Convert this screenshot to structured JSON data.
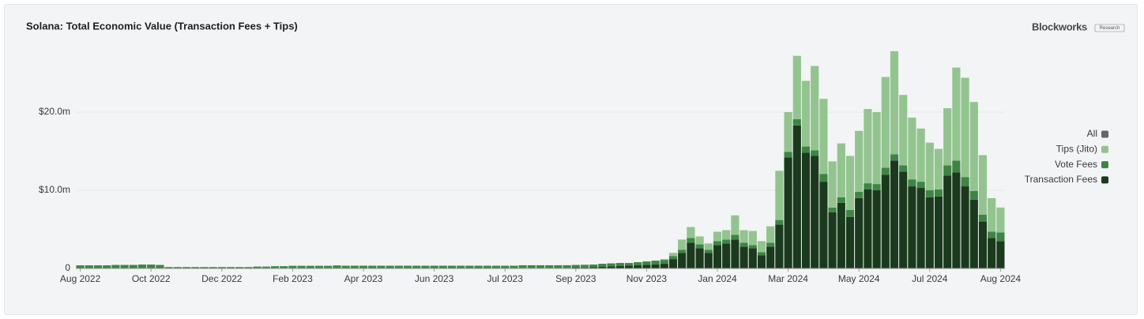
{
  "branding": {
    "name": "Blockworks",
    "tag": "Research"
  },
  "chart_data": {
    "type": "stacked-bar",
    "title": "Solana: Total Economic Value (Transaction Fees + Tips)",
    "categories": [
      "Aug 2022",
      null,
      null,
      null,
      null,
      null,
      null,
      null,
      "Oct 2022",
      null,
      null,
      null,
      null,
      null,
      null,
      null,
      "Dec 2022",
      null,
      null,
      null,
      null,
      null,
      null,
      null,
      "Feb 2023",
      null,
      null,
      null,
      null,
      null,
      null,
      null,
      "Apr 2023",
      null,
      null,
      null,
      null,
      null,
      null,
      null,
      "Jun 2023",
      null,
      null,
      null,
      null,
      null,
      null,
      null,
      "Jul 2023",
      null,
      null,
      null,
      null,
      null,
      null,
      null,
      "Sep 2023",
      null,
      null,
      null,
      null,
      null,
      null,
      null,
      "Nov 2023",
      null,
      null,
      null,
      null,
      null,
      null,
      null,
      "Jan 2024",
      null,
      null,
      null,
      null,
      null,
      null,
      null,
      "Mar 2024",
      null,
      null,
      null,
      null,
      null,
      null,
      null,
      "May 2024",
      null,
      null,
      null,
      null,
      null,
      null,
      null,
      "Jul 2024",
      null,
      null,
      null,
      null,
      null,
      null,
      null,
      "Aug 2024"
    ],
    "series": [
      {
        "name": "Transaction Fees",
        "color": "#1b3a1d",
        "values": [
          0.05,
          0.05,
          0.05,
          0.05,
          0.05,
          0.05,
          0.05,
          0.05,
          0.05,
          0.05,
          0.03,
          0.03,
          0.03,
          0.03,
          0.03,
          0.03,
          0.03,
          0.03,
          0.03,
          0.03,
          0.04,
          0.04,
          0.04,
          0.04,
          0.04,
          0.04,
          0.04,
          0.04,
          0.04,
          0.04,
          0.05,
          0.05,
          0.05,
          0.05,
          0.05,
          0.05,
          0.05,
          0.05,
          0.05,
          0.05,
          0.05,
          0.05,
          0.05,
          0.05,
          0.05,
          0.05,
          0.05,
          0.05,
          0.05,
          0.05,
          0.06,
          0.06,
          0.06,
          0.06,
          0.06,
          0.06,
          0.1,
          0.12,
          0.15,
          0.2,
          0.25,
          0.3,
          0.35,
          0.4,
          0.45,
          0.5,
          0.6,
          1.2,
          2.0,
          3.3,
          2.6,
          2.0,
          3.0,
          3.2,
          3.7,
          2.8,
          2.6,
          1.7,
          2.8,
          5.6,
          14.2,
          18.3,
          14.8,
          14.4,
          11.1,
          7.2,
          8.4,
          6.6,
          9.0,
          10.1,
          10.0,
          12.0,
          13.8,
          12.4,
          10.5,
          10.3,
          9.1,
          9.2,
          11.9,
          12.3,
          10.5,
          8.8,
          6.0,
          3.9,
          3.5
        ]
      },
      {
        "name": "Vote Fees",
        "color": "#3e8544",
        "values": [
          0.35,
          0.35,
          0.35,
          0.35,
          0.4,
          0.4,
          0.4,
          0.45,
          0.45,
          0.4,
          0.15,
          0.15,
          0.15,
          0.15,
          0.15,
          0.15,
          0.15,
          0.15,
          0.15,
          0.15,
          0.2,
          0.2,
          0.25,
          0.25,
          0.3,
          0.3,
          0.3,
          0.3,
          0.3,
          0.35,
          0.3,
          0.3,
          0.3,
          0.3,
          0.3,
          0.3,
          0.3,
          0.3,
          0.3,
          0.3,
          0.3,
          0.3,
          0.3,
          0.3,
          0.3,
          0.3,
          0.3,
          0.3,
          0.3,
          0.3,
          0.35,
          0.35,
          0.35,
          0.35,
          0.35,
          0.35,
          0.35,
          0.35,
          0.35,
          0.4,
          0.4,
          0.4,
          0.35,
          0.4,
          0.45,
          0.5,
          0.5,
          0.4,
          0.4,
          0.6,
          0.5,
          0.4,
          0.5,
          0.5,
          0.6,
          0.5,
          0.4,
          0.4,
          0.5,
          0.6,
          0.7,
          0.8,
          0.8,
          0.7,
          1.0,
          0.6,
          0.7,
          0.9,
          0.8,
          0.8,
          0.8,
          0.9,
          0.8,
          0.8,
          0.9,
          0.8,
          0.9,
          0.9,
          1.3,
          1.5,
          1.2,
          1.1,
          0.9,
          0.8,
          1.1
        ]
      },
      {
        "name": "Tips (Jito)",
        "color": "#93c48f",
        "values": [
          0,
          0,
          0,
          0,
          0,
          0,
          0,
          0,
          0,
          0,
          0,
          0,
          0,
          0,
          0,
          0,
          0,
          0,
          0,
          0,
          0,
          0,
          0,
          0,
          0,
          0,
          0,
          0,
          0,
          0,
          0,
          0,
          0,
          0,
          0,
          0,
          0,
          0,
          0,
          0,
          0,
          0,
          0,
          0,
          0,
          0,
          0,
          0,
          0,
          0,
          0,
          0,
          0,
          0,
          0,
          0,
          0,
          0,
          0,
          0,
          0,
          0,
          0,
          0,
          0,
          0,
          0.1,
          0.4,
          1.3,
          1.4,
          1.0,
          0.8,
          1.2,
          1.2,
          2.5,
          1.6,
          1.8,
          1.4,
          2.1,
          6.3,
          5.1,
          8.1,
          8.4,
          10.8,
          9.6,
          5.9,
          6.9,
          6.9,
          7.8,
          9.5,
          9.2,
          11.6,
          13.2,
          9.0,
          7.9,
          6.8,
          6.1,
          5.2,
          7.3,
          11.9,
          12.7,
          11.4,
          7.6,
          4.3,
          3.2
        ]
      }
    ],
    "ylim": [
      0,
      30
    ],
    "yticks": [
      0,
      {
        "value": 10,
        "label": "$10.0m"
      },
      {
        "value": 20,
        "label": "$20.0m"
      }
    ],
    "grid": true,
    "legend": {
      "position": "right",
      "all_label": "All",
      "all_color": "#666666"
    }
  }
}
